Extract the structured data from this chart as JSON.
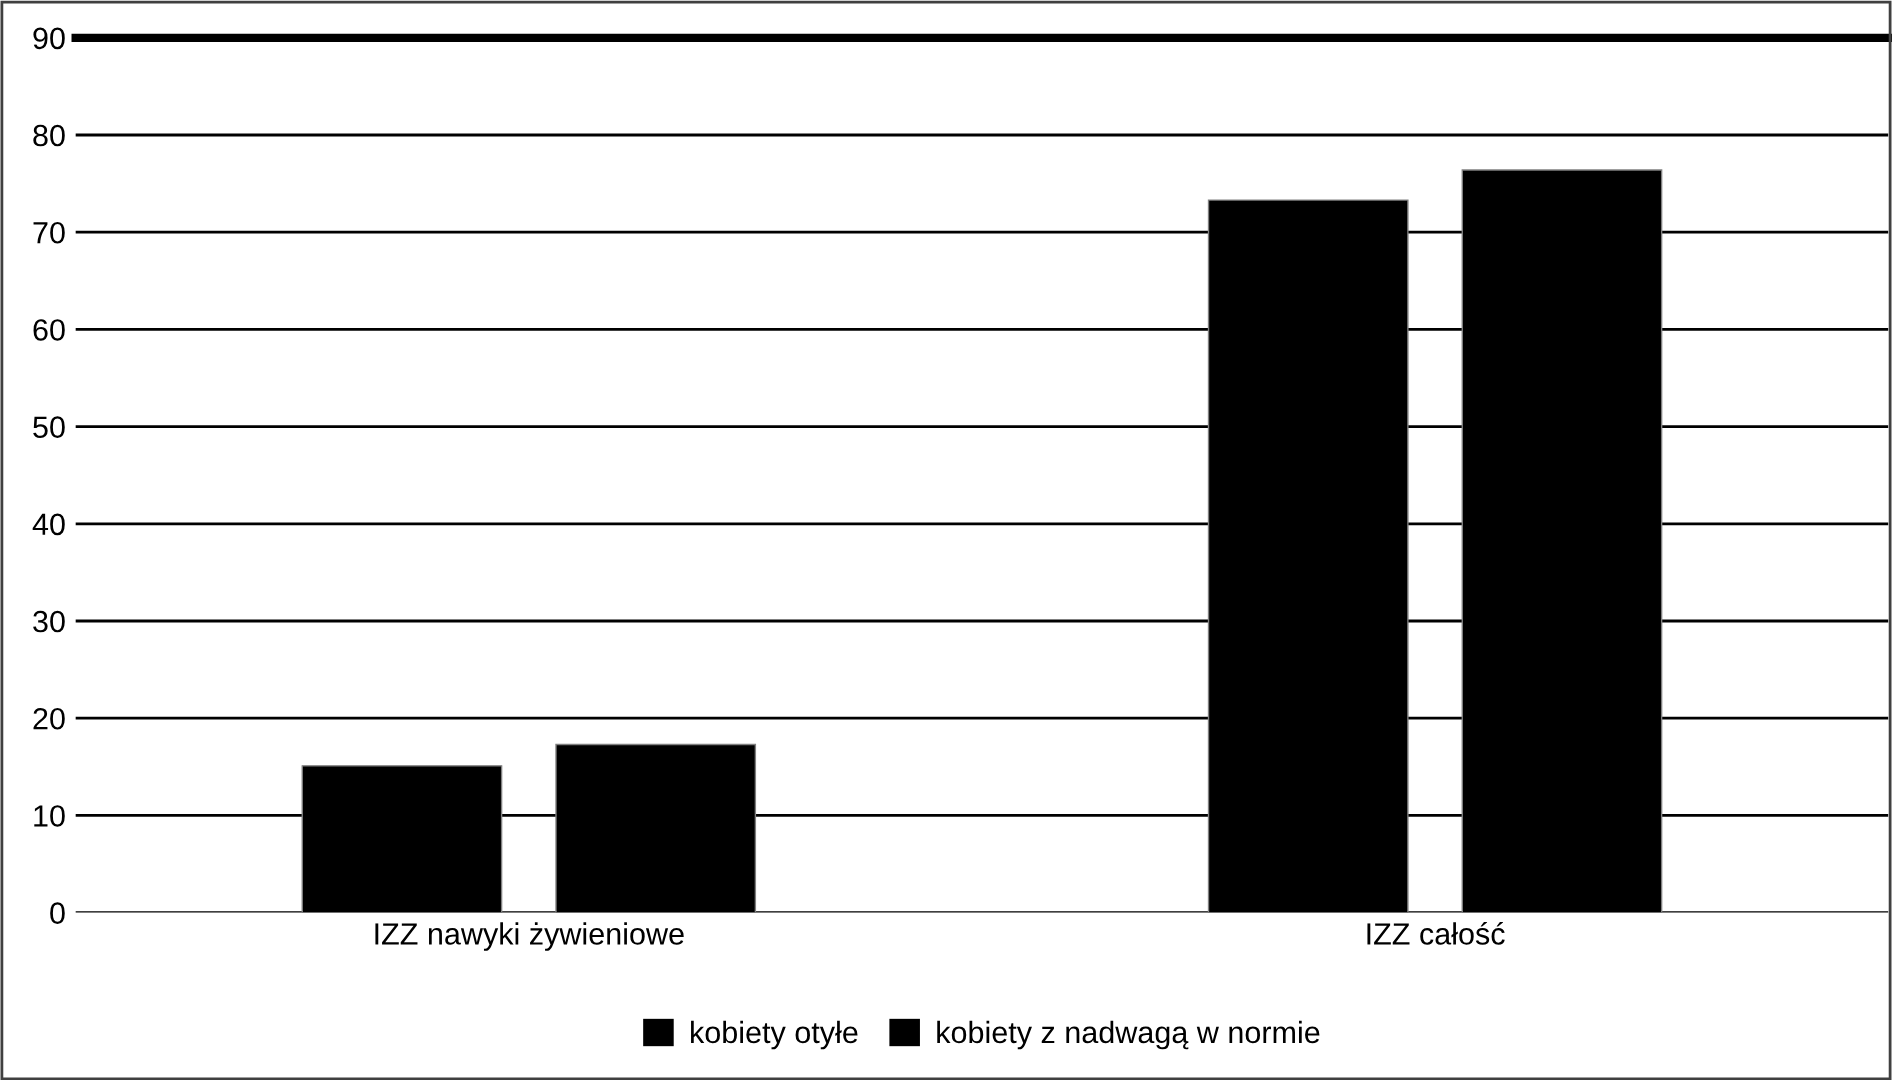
{
  "chart_data": {
    "type": "bar",
    "categories": [
      "IZZ nawyki żywieniowe",
      "IZZ całość"
    ],
    "series": [
      {
        "name": "kobiety otyłe",
        "color": "#000000",
        "values": [
          15.1,
          73.3
        ]
      },
      {
        "name": "kobiety z nadwagą w normie",
        "color": "#000000",
        "values": [
          17.3,
          76.4
        ]
      }
    ],
    "ylim": [
      0,
      90
    ],
    "yticks": [
      0,
      10,
      20,
      30,
      40,
      50,
      60,
      70,
      80,
      90
    ],
    "grid": "y",
    "legend": "bottom"
  }
}
